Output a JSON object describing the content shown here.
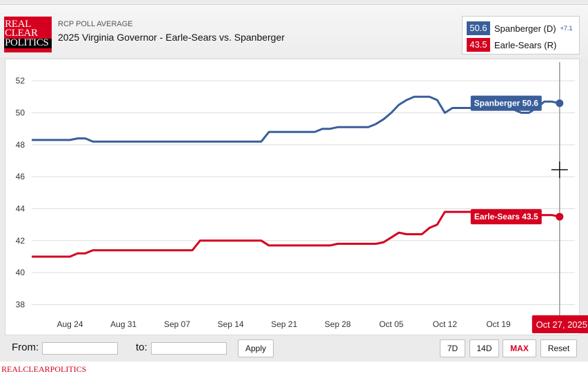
{
  "header": {
    "logo_lines": [
      "REAL",
      "CLEAR",
      "POLITICS"
    ],
    "poll_label": "RCP POLL AVERAGE",
    "title": "2025 Virginia Governor - Earle-Sears vs. Spanberger"
  },
  "legend": {
    "items": [
      {
        "value": "50.6",
        "name": "Spanberger (D)",
        "spread": "+7.1",
        "color": "#3a5e9a"
      },
      {
        "value": "43.5",
        "name": "Earle-Sears (R)",
        "spread": "",
        "color": "#d5001f"
      }
    ]
  },
  "colors": {
    "spanberger": "#3a5e9a",
    "earle_sears": "#d5001f",
    "grid": "#dddddd",
    "crosshair": "#999999"
  },
  "chart_data": {
    "type": "line",
    "title": "2025 Virginia Governor - Earle-Sears vs. Spanberger",
    "xlabel": "",
    "ylabel": "",
    "x_start_day": -1,
    "x_end_day": 70,
    "ylim": [
      37.2,
      53.0
    ],
    "y_ticks": [
      38,
      40,
      42,
      44,
      46,
      48,
      50,
      52
    ],
    "x_ticks": [
      {
        "label": "Aug 24",
        "day": 4
      },
      {
        "label": "Aug 31",
        "day": 11
      },
      {
        "label": "Sep 07",
        "day": 18
      },
      {
        "label": "Sep 14",
        "day": 25
      },
      {
        "label": "Sep 21",
        "day": 32
      },
      {
        "label": "Sep 28",
        "day": 39
      },
      {
        "label": "Oct 05",
        "day": 46
      },
      {
        "label": "Oct 12",
        "day": 53
      },
      {
        "label": "Oct 19",
        "day": 60
      }
    ],
    "hover_date": "Oct 27, 2025",
    "hover_day": 68,
    "series": [
      {
        "name": "Spanberger",
        "label": "Spanberger 50.6",
        "points": [
          [
            -1,
            48.3
          ],
          [
            4,
            48.3
          ],
          [
            5,
            48.4
          ],
          [
            6,
            48.4
          ],
          [
            7,
            48.2
          ],
          [
            12,
            48.2
          ],
          [
            18,
            48.2
          ],
          [
            24,
            48.2
          ],
          [
            29,
            48.2
          ],
          [
            30,
            48.8
          ],
          [
            36,
            48.8
          ],
          [
            37,
            49.0
          ],
          [
            38,
            49.0
          ],
          [
            39,
            49.1
          ],
          [
            43,
            49.1
          ],
          [
            44,
            49.3
          ],
          [
            45,
            49.6
          ],
          [
            46,
            50.0
          ],
          [
            47,
            50.5
          ],
          [
            48,
            50.8
          ],
          [
            49,
            51.0
          ],
          [
            51,
            51.0
          ],
          [
            52,
            50.8
          ],
          [
            53,
            50.0
          ],
          [
            54,
            50.3
          ],
          [
            58,
            50.3
          ],
          [
            60,
            50.3
          ],
          [
            61,
            50.3
          ],
          [
            62,
            50.2
          ],
          [
            63,
            50.0
          ],
          [
            64,
            50.0
          ],
          [
            65,
            50.3
          ],
          [
            66,
            50.7
          ],
          [
            67,
            50.7
          ],
          [
            68,
            50.6
          ]
        ]
      },
      {
        "name": "Earle-Sears",
        "label": "Earle-Sears 43.5",
        "points": [
          [
            -1,
            41.0
          ],
          [
            4,
            41.0
          ],
          [
            5,
            41.2
          ],
          [
            6,
            41.2
          ],
          [
            7,
            41.4
          ],
          [
            12,
            41.4
          ],
          [
            18,
            41.4
          ],
          [
            20,
            41.4
          ],
          [
            21,
            42.0
          ],
          [
            29,
            42.0
          ],
          [
            30,
            41.7
          ],
          [
            36,
            41.7
          ],
          [
            38,
            41.7
          ],
          [
            39,
            41.8
          ],
          [
            44,
            41.8
          ],
          [
            45,
            41.9
          ],
          [
            46,
            42.2
          ],
          [
            47,
            42.5
          ],
          [
            48,
            42.4
          ],
          [
            50,
            42.4
          ],
          [
            51,
            42.8
          ],
          [
            52,
            43.0
          ],
          [
            53,
            43.8
          ],
          [
            54,
            43.8
          ],
          [
            56,
            43.8
          ],
          [
            58,
            43.8
          ],
          [
            60,
            43.7
          ],
          [
            62,
            43.7
          ],
          [
            63,
            43.6
          ],
          [
            64,
            43.7
          ],
          [
            65,
            43.6
          ],
          [
            66,
            43.6
          ],
          [
            67,
            43.6
          ],
          [
            68,
            43.5
          ]
        ]
      }
    ]
  },
  "controls": {
    "from_label": "From:",
    "to_label": "to:",
    "from_value": "",
    "to_value": "",
    "apply_label": "Apply",
    "range_buttons": [
      "7D",
      "14D",
      "MAX"
    ],
    "active_range": "MAX",
    "reset_label": "Reset"
  },
  "footer": {
    "brand": "REALCLEARPOLITICS"
  }
}
